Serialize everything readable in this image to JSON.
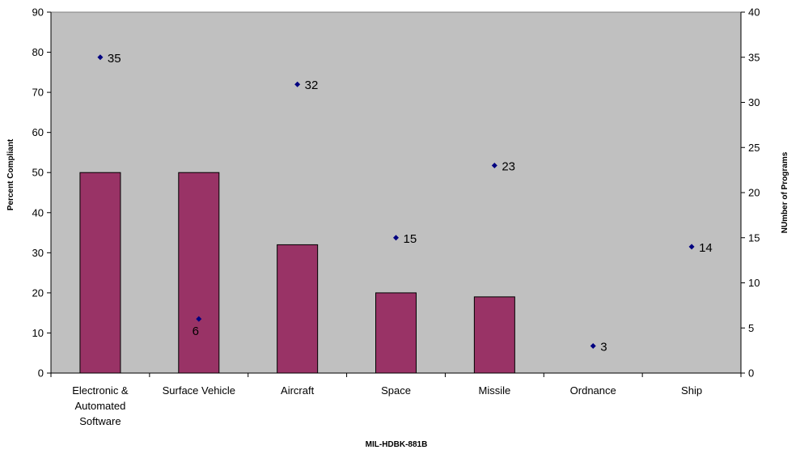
{
  "chart_data": {
    "type": "bar",
    "title": "",
    "xlabel": "MIL-HDBK-881B",
    "ylabel": "Percent Compliant",
    "y2label": "NUmber of Programs",
    "ylim": [
      0,
      90
    ],
    "y2lim": [
      0,
      40
    ],
    "yticks": [
      0,
      10,
      20,
      30,
      40,
      50,
      60,
      70,
      80,
      90
    ],
    "y2ticks": [
      0,
      5,
      10,
      15,
      20,
      25,
      30,
      35,
      40
    ],
    "grid": false,
    "legend": "none",
    "categories": [
      [
        "Electronic &",
        "Automated",
        "Software"
      ],
      [
        "Surface Vehicle"
      ],
      [
        "Aircraft"
      ],
      [
        "Space"
      ],
      [
        "Missile"
      ],
      [
        "Ordnance"
      ],
      [
        "Ship"
      ]
    ],
    "series": [
      {
        "type": "bar",
        "axis": "left",
        "values": [
          50,
          50,
          32,
          20,
          19,
          0,
          0
        ]
      },
      {
        "type": "scatter",
        "axis": "right",
        "values": [
          35,
          6,
          32,
          15,
          23,
          3,
          14
        ]
      }
    ],
    "colors": {
      "plot_background": "#c0c0c0",
      "bar_fill": "#993366",
      "marker": "#000080"
    }
  }
}
